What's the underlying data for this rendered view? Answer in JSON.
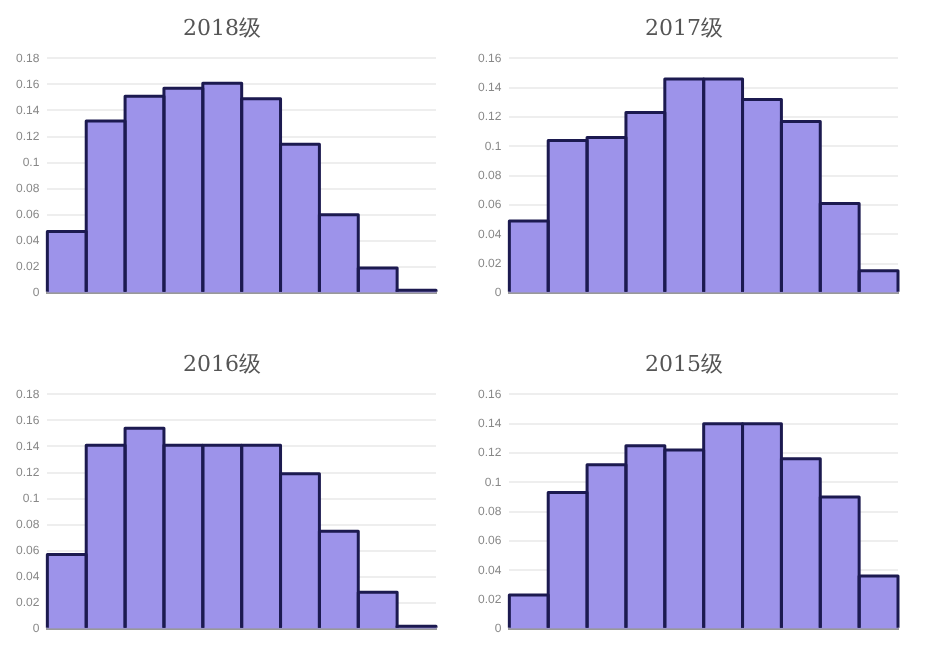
{
  "chart_data": [
    {
      "type": "bar",
      "title": "2018级",
      "categories": [
        null,
        null,
        null,
        null,
        null,
        null,
        null,
        null,
        null,
        null
      ],
      "values": [
        0.047,
        0.132,
        0.151,
        0.157,
        0.161,
        0.149,
        0.114,
        0.06,
        0.019,
        0.002
      ],
      "color": "#9d93ea",
      "ylim": [
        0,
        0.18
      ],
      "yticks": [
        0,
        0.02,
        0.04,
        0.06,
        0.08,
        0.1,
        0.12,
        0.14,
        0.16,
        0.18
      ],
      "grid": "y"
    },
    {
      "type": "bar",
      "title": "2017级",
      "categories": [
        null,
        null,
        null,
        null,
        null,
        null,
        null,
        null,
        null,
        null
      ],
      "values": [
        0.049,
        0.104,
        0.106,
        0.123,
        0.146,
        0.146,
        0.132,
        0.117,
        0.061,
        0.015
      ],
      "color": "#9d93ea",
      "ylim": [
        0,
        0.16
      ],
      "yticks": [
        0,
        0.02,
        0.04,
        0.06,
        0.08,
        0.1,
        0.12,
        0.14,
        0.16
      ],
      "grid": "y"
    },
    {
      "type": "bar",
      "title": "2016级",
      "categories": [
        null,
        null,
        null,
        null,
        null,
        null,
        null,
        null,
        null,
        null
      ],
      "values": [
        0.057,
        0.141,
        0.154,
        0.141,
        0.141,
        0.141,
        0.119,
        0.075,
        0.028,
        0.002
      ],
      "color": "#9d93ea",
      "ylim": [
        0,
        0.18
      ],
      "yticks": [
        0,
        0.02,
        0.04,
        0.06,
        0.08,
        0.1,
        0.12,
        0.14,
        0.16,
        0.18
      ],
      "grid": "y"
    },
    {
      "type": "bar",
      "title": "2015级",
      "categories": [
        null,
        null,
        null,
        null,
        null,
        null,
        null,
        null,
        null,
        null
      ],
      "values": [
        0.023,
        0.093,
        0.112,
        0.125,
        0.122,
        0.14,
        0.14,
        0.116,
        0.09,
        0.036
      ],
      "color": "#9d93ea",
      "ylim": [
        0,
        0.16
      ],
      "yticks": [
        0,
        0.02,
        0.04,
        0.06,
        0.08,
        0.1,
        0.12,
        0.14,
        0.16
      ],
      "grid": "y"
    }
  ]
}
